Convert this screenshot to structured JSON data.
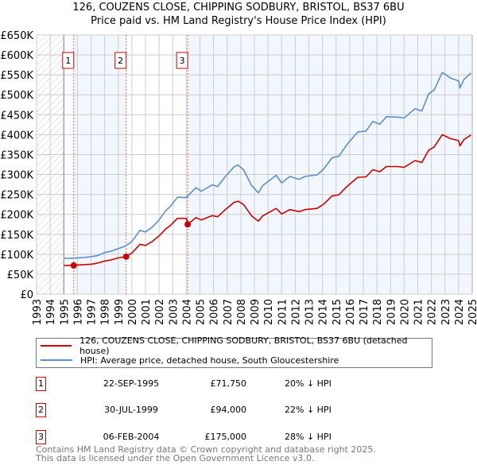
{
  "title_line1": "126, COUZENS CLOSE, CHIPPING SODBURY, BRISTOL, BS37 6BU",
  "title_line2": "Price paid vs. HM Land Registry's House Price Index (HPI)",
  "colors": {
    "property": "#cc0000",
    "hpi": "#5b8fd0",
    "shade": "#f2f6fd",
    "grid": "#cccccc"
  },
  "chart_data": {
    "type": "line",
    "xlim": [
      1993,
      2025
    ],
    "ylim": [
      0,
      650000
    ],
    "y_ticks": [
      0,
      50000,
      100000,
      150000,
      200000,
      250000,
      300000,
      350000,
      400000,
      450000,
      500000,
      550000,
      600000,
      650000
    ],
    "y_tick_labels": [
      "£0",
      "£50K",
      "£100K",
      "£150K",
      "£200K",
      "£250K",
      "£300K",
      "£350K",
      "£400K",
      "£450K",
      "£500K",
      "£550K",
      "£600K",
      "£650K"
    ],
    "x_tick_labels": [
      "1993",
      "1994",
      "1995",
      "1996",
      "1997",
      "1998",
      "1999",
      "2000",
      "2001",
      "2002",
      "2003",
      "2004",
      "2005",
      "2006",
      "2007",
      "2008",
      "2009",
      "2010",
      "2011",
      "2012",
      "2013",
      "2014",
      "2015",
      "2016",
      "2017",
      "2018",
      "2019",
      "2020",
      "2021",
      "2022",
      "2023",
      "2024",
      "2025"
    ],
    "grid": true,
    "hatched_range": [
      1993,
      1995
    ],
    "series": [
      {
        "name": "126, COUZENS CLOSE, CHIPPING SODBURY, BRISTOL, BS37 6BU (detached house)",
        "x": [
          1995.0,
          1995.5,
          1996.0,
          1996.5,
          1997.0,
          1997.5,
          1998.0,
          1998.5,
          1999.0,
          1999.5,
          2000.0,
          2000.6,
          2001.0,
          2001.5,
          2002.0,
          2002.5,
          2002.8,
          2003.35,
          2004.0,
          2004.1,
          2004.7,
          2005.1,
          2005.9,
          2006.3,
          2006.9,
          2007.5,
          2007.8,
          2008.2,
          2008.8,
          2009.3,
          2009.6,
          2010.6,
          2011.0,
          2011.6,
          2012.3,
          2012.7,
          2013.6,
          2014.1,
          2014.7,
          2015.2,
          2015.8,
          2016.6,
          2017.2,
          2017.7,
          2018.2,
          2018.7,
          2019.5,
          2020.0,
          2020.8,
          2021.3,
          2021.8,
          2022.2,
          2022.8,
          2023.4,
          2024.0,
          2024.1,
          2024.4,
          2024.9
        ],
        "y": [
          72,
          72,
          73,
          74,
          75,
          78,
          83,
          86,
          91,
          94,
          103,
          125,
          122,
          132,
          146,
          164,
          171,
          190,
          190,
          175,
          192,
          186,
          197,
          194,
          213,
          230,
          233,
          225,
          196,
          183,
          196,
          215,
          201,
          212,
          207,
          212,
          215,
          226,
          246,
          249,
          270,
          293,
          294,
          312,
          307,
          320,
          320,
          318,
          335,
          330,
          361,
          369,
          400,
          390,
          385,
          372,
          388,
          399
        ],
        "y_unit": "thousand GBP"
      },
      {
        "name": "HPI: Average price, detached house, South Gloucestershire",
        "x": [
          1995.0,
          1995.5,
          1996.0,
          1996.5,
          1997.0,
          1997.5,
          1998.0,
          1998.5,
          1999.0,
          1999.5,
          2000.0,
          2000.6,
          2001.0,
          2001.5,
          2002.0,
          2002.5,
          2002.8,
          2003.35,
          2004.0,
          2004.7,
          2005.1,
          2005.9,
          2006.3,
          2006.9,
          2007.5,
          2007.8,
          2008.2,
          2008.8,
          2009.3,
          2009.6,
          2010.6,
          2011.0,
          2011.6,
          2012.3,
          2012.7,
          2013.6,
          2014.1,
          2014.7,
          2015.2,
          2015.8,
          2016.6,
          2017.2,
          2017.7,
          2018.2,
          2018.7,
          2019.5,
          2020.0,
          2020.8,
          2021.3,
          2021.8,
          2022.2,
          2022.8,
          2023.4,
          2024.0,
          2024.1,
          2024.4,
          2024.9
        ],
        "y": [
          90,
          90,
          91,
          92,
          94,
          97,
          104,
          108,
          114,
          120,
          132,
          160,
          156,
          168,
          186,
          210,
          219,
          243,
          242,
          267,
          258,
          274,
          270,
          296,
          319,
          324,
          312,
          272,
          254,
          272,
          298,
          279,
          295,
          288,
          295,
          299,
          314,
          342,
          346,
          375,
          407,
          409,
          433,
          426,
          445,
          444,
          442,
          465,
          459,
          502,
          512,
          556,
          542,
          535,
          517,
          539,
          554
        ],
        "y_unit": "thousand GBP"
      }
    ],
    "sales": [
      {
        "label": "1",
        "date": "22-SEP-1995",
        "year": 1995.73,
        "price": "£71,750",
        "value": 71750,
        "hpi": "20% ↓ HPI"
      },
      {
        "label": "2",
        "date": "30-JUL-1999",
        "year": 1999.58,
        "price": "£94,000",
        "value": 94000,
        "hpi": "22% ↓ HPI"
      },
      {
        "label": "3",
        "date": "06-FEB-2004",
        "year": 2004.1,
        "price": "£175,000",
        "value": 175000,
        "hpi": "28% ↓ HPI"
      }
    ],
    "legend_position": "below"
  },
  "footer_line1": "Contains HM Land Registry data © Crown copyright and database right 2025.",
  "footer_line2": "This data is licensed under the Open Government Licence v3.0."
}
